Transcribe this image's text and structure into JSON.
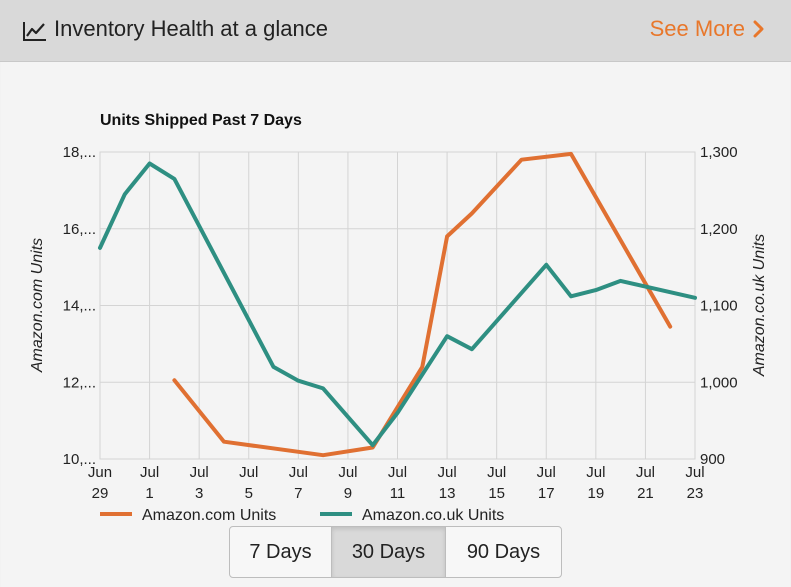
{
  "header": {
    "title": "Inventory Health at a glance",
    "see_more": "See More",
    "icon": "line-chart-icon"
  },
  "range_buttons": [
    {
      "label": "7 Days",
      "active": false
    },
    {
      "label": "30 Days",
      "active": true
    },
    {
      "label": "90 Days",
      "active": false
    }
  ],
  "colors": {
    "accent": "#e8772b",
    "series_com": "#e07032",
    "series_uk": "#2e8f82",
    "grid": "#d4d4d4"
  },
  "chart_data": {
    "type": "line",
    "title": "Units Shipped Past 7 Days",
    "ylabel_left": "Amazon.com Units",
    "ylabel_right": "Amazon.co.uk Units",
    "x_ticks": [
      [
        "Jun",
        "29"
      ],
      [
        "Jul",
        "1"
      ],
      [
        "Jul",
        "3"
      ],
      [
        "Jul",
        "5"
      ],
      [
        "Jul",
        "7"
      ],
      [
        "Jul",
        "9"
      ],
      [
        "Jul",
        "11"
      ],
      [
        "Jul",
        "13"
      ],
      [
        "Jul",
        "15"
      ],
      [
        "Jul",
        "17"
      ],
      [
        "Jul",
        "19"
      ],
      [
        "Jul",
        "21"
      ],
      [
        "Jul",
        "23"
      ]
    ],
    "y_left_ticks": [
      "18,...",
      "16,...",
      "14,...",
      "12,...",
      "10,..."
    ],
    "y_right_ticks": [
      "1,300",
      "1,200",
      "1,100",
      "1,000",
      "900"
    ],
    "ylim_left": [
      10000,
      18000
    ],
    "ylim_right": [
      900,
      1300
    ],
    "grid": true,
    "legend_position": "bottom",
    "series": [
      {
        "name": "Amazon.com Units",
        "axis": "left",
        "x": [
          "2015-07-02",
          "2015-07-04",
          "2015-07-08",
          "2015-07-10",
          "2015-07-12",
          "2015-07-13",
          "2015-07-14",
          "2015-07-16",
          "2015-07-18",
          "2015-07-22"
        ],
        "y": [
          12050,
          10450,
          10100,
          10300,
          12400,
          15800,
          16400,
          17800,
          17950,
          13450
        ]
      },
      {
        "name": "Amazon.co.uk Units",
        "axis": "right",
        "x": [
          "2015-06-29",
          "2015-06-30",
          "2015-07-01",
          "2015-07-02",
          "2015-07-06",
          "2015-07-07",
          "2015-07-08",
          "2015-07-10",
          "2015-07-11",
          "2015-07-13",
          "2015-07-14",
          "2015-07-17",
          "2015-07-18",
          "2015-07-19",
          "2015-07-20",
          "2015-07-23"
        ],
        "y": [
          1175,
          1245,
          1285,
          1265,
          1020,
          1002,
          992,
          918,
          960,
          1060,
          1043,
          1153,
          1112,
          1120,
          1132,
          1110
        ]
      }
    ]
  }
}
